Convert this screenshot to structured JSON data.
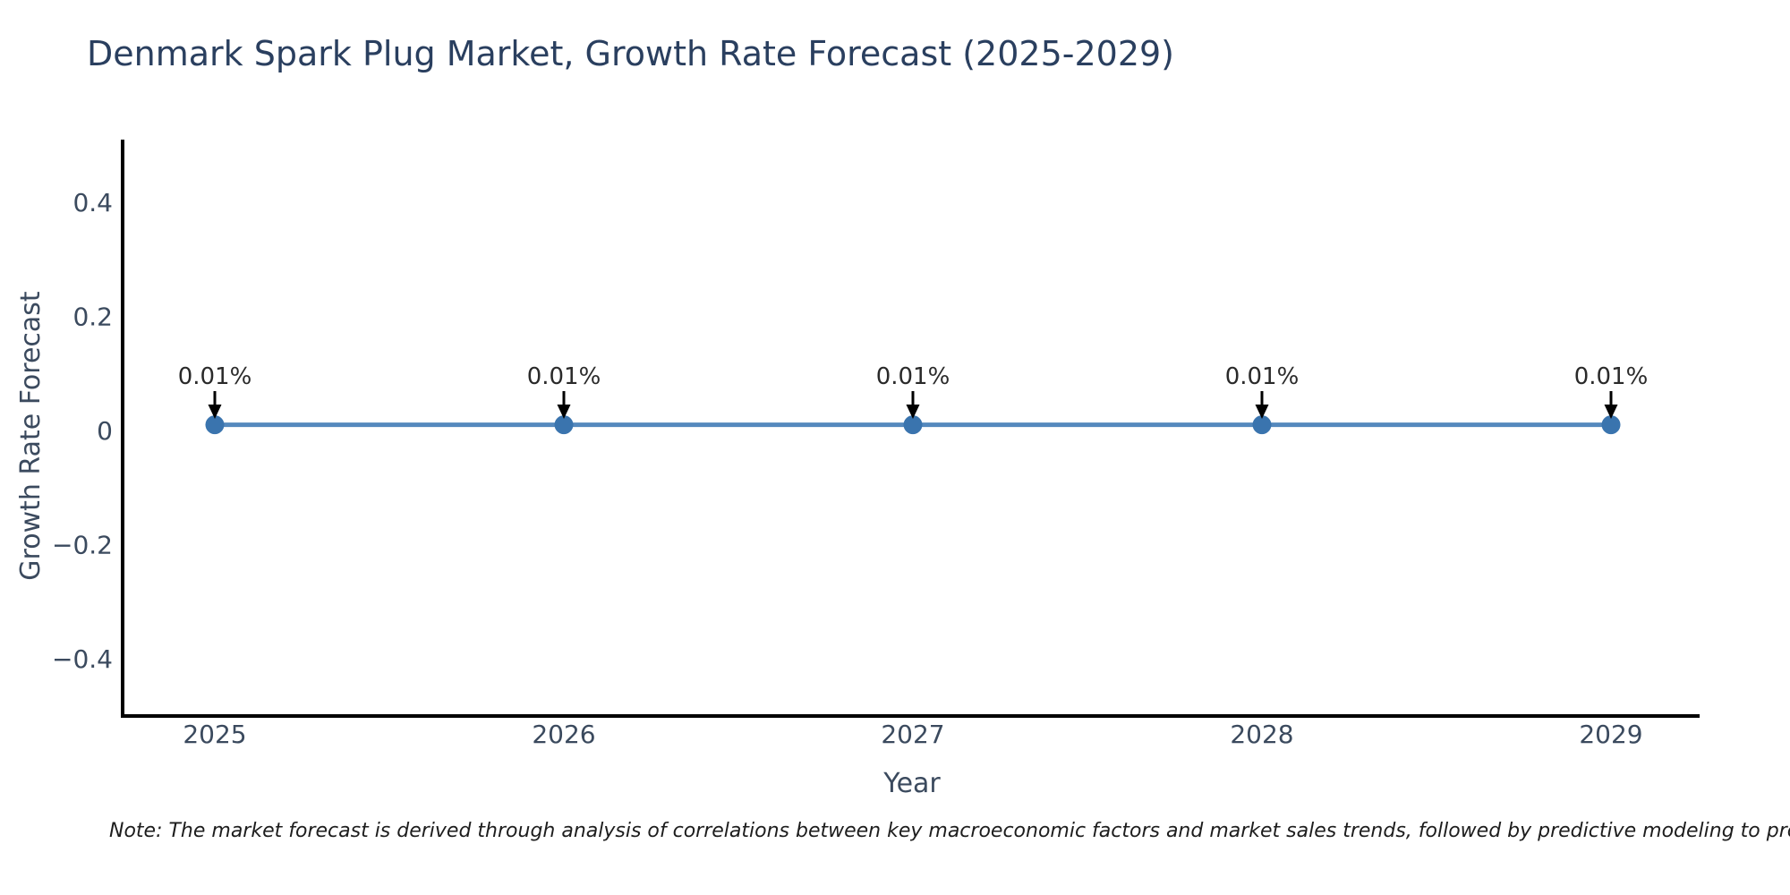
{
  "chart_data": {
    "type": "line",
    "title": "Denmark Spark Plug Market, Growth Rate Forecast (2025-2029)",
    "xlabel": "Year",
    "ylabel": "Growth Rate Forecast",
    "x": [
      2025,
      2026,
      2027,
      2028,
      2029
    ],
    "x_tick_labels": [
      "2025",
      "2026",
      "2027",
      "2028",
      "2029"
    ],
    "series": [
      {
        "name": "Growth Rate Forecast",
        "values": [
          0.01,
          0.01,
          0.01,
          0.01,
          0.01
        ],
        "point_labels": [
          "0.01%",
          "0.01%",
          "0.01%",
          "0.01%",
          "0.01%"
        ]
      }
    ],
    "y_ticks": [
      0.4,
      0.2,
      0,
      -0.2,
      -0.4
    ],
    "y_tick_labels": [
      "0.4",
      "0.2",
      "0",
      "−0.2",
      "−0.4"
    ],
    "ylim": [
      -0.5,
      0.51
    ],
    "grid": false,
    "legend_position": "none",
    "colors": {
      "line": "#5589bd",
      "marker": "#3a74ae",
      "arrow": "#000000",
      "spine": "#000000",
      "title_text": "#2a3f5f",
      "axis_text": "#3b4a5e"
    }
  },
  "note": {
    "text": "Note: The market forecast is derived through analysis of correlations between key macroeconomic factors and market sales trends, followed by predictive modeling to project future sa"
  }
}
